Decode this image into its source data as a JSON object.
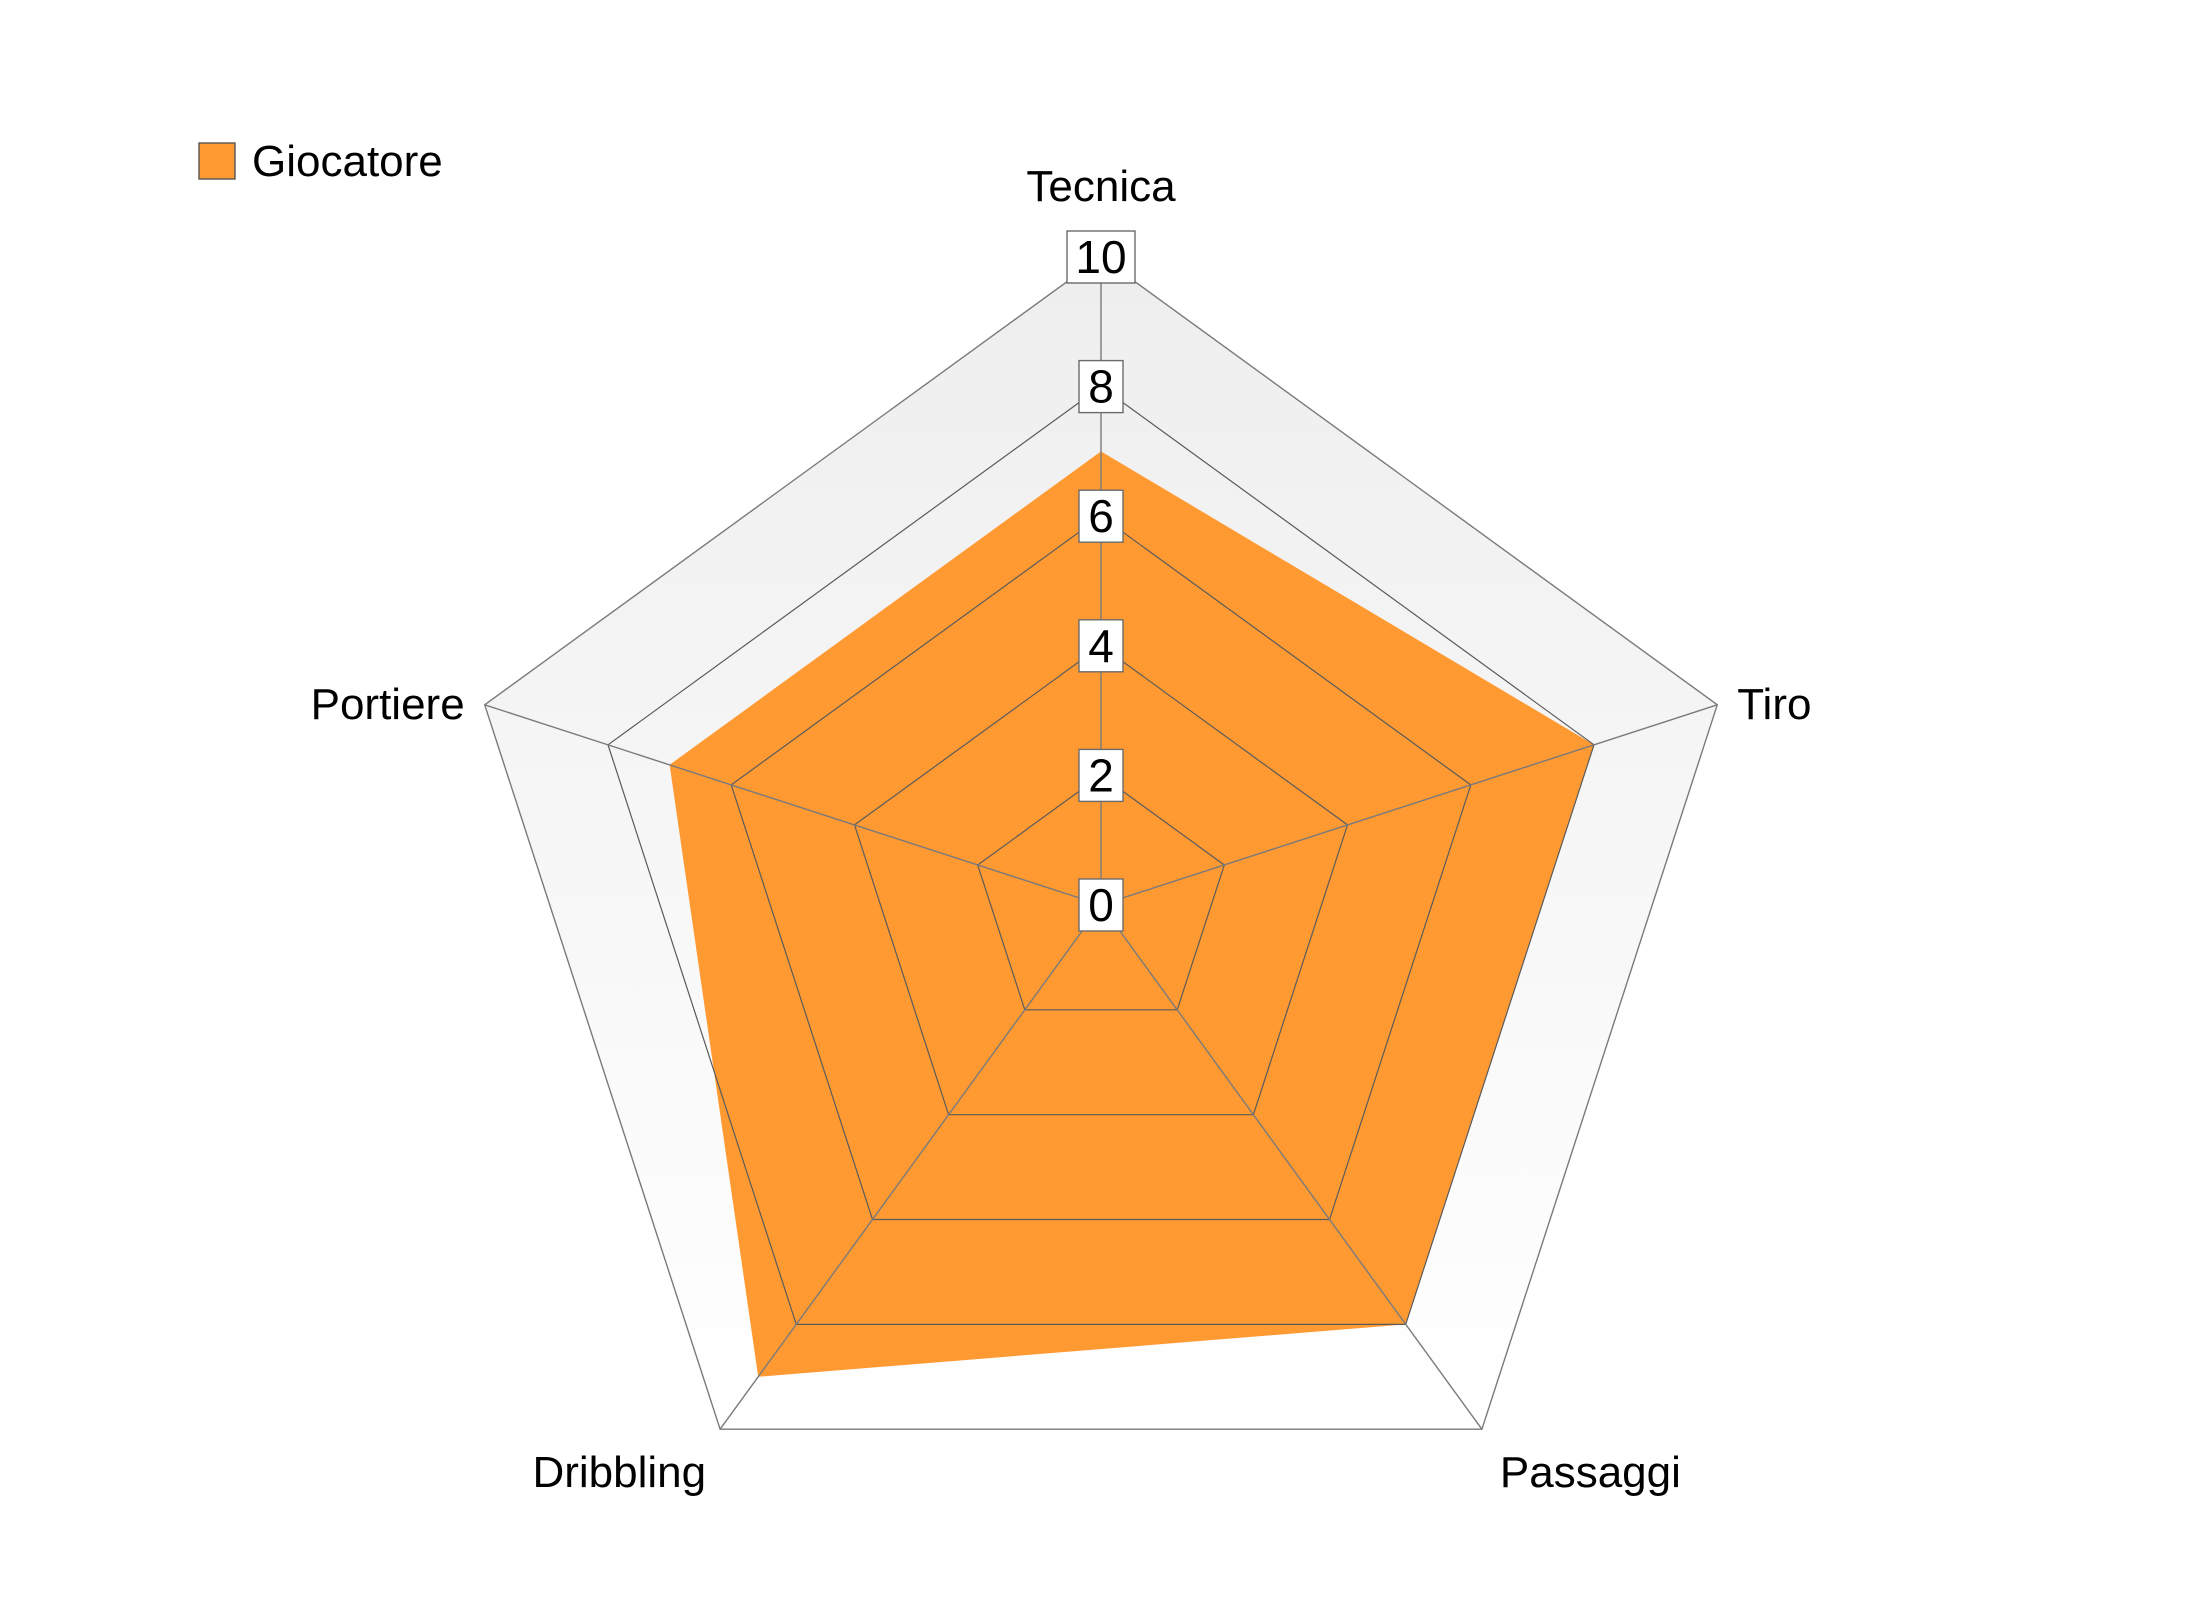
{
  "chart_data": {
    "type": "radar",
    "title": "",
    "categories": [
      "Tecnica",
      "Tiro",
      "Passaggi",
      "Dribbling",
      "Portiere"
    ],
    "series": [
      {
        "name": "Giocatore",
        "values": [
          7,
          8,
          8,
          9,
          7
        ]
      }
    ],
    "rlim": [
      0,
      10
    ],
    "ticks": [
      "0",
      "2",
      "4",
      "6",
      "8",
      "10"
    ],
    "legend_position": "top-left",
    "colors": {
      "series": "#ff9a33",
      "grid": "#7a7a7a",
      "band_top": "#eeeeee",
      "band_bottom": "#ffffff"
    }
  }
}
